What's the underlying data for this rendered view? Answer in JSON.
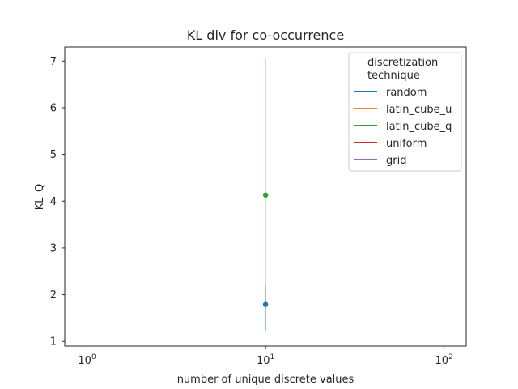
{
  "chart_data": {
    "type": "line",
    "title": "KL div for co-occurrence",
    "xlabel": "number of unique discrete values",
    "ylabel": "KL_Q",
    "xscale": "log",
    "xlim": [
      0.75,
      133
    ],
    "ylim": [
      0.9,
      7.3
    ],
    "xticks": [
      {
        "value": 1,
        "base": "10",
        "exp": "0"
      },
      {
        "value": 10,
        "base": "10",
        "exp": "1"
      },
      {
        "value": 100,
        "base": "10",
        "exp": "2"
      }
    ],
    "yticks": [
      1,
      2,
      3,
      4,
      5,
      6,
      7
    ],
    "grid": false,
    "legend": {
      "title_lines": [
        "discretization",
        "technique"
      ],
      "placement": "top-right"
    },
    "series": [
      {
        "name": "random",
        "color": "#1f77b4",
        "x": [
          10
        ],
        "y": [
          1.79
        ],
        "ci": [
          [
            1.25,
            2.2
          ]
        ]
      },
      {
        "name": "latin_cube_u",
        "color": "#ff7f0e",
        "x": [],
        "y": [],
        "ci": []
      },
      {
        "name": "latin_cube_q",
        "color": "#2ca02c",
        "x": [
          10
        ],
        "y": [
          4.13
        ],
        "ci": [
          [
            1.2,
            7.05
          ]
        ]
      },
      {
        "name": "uniform",
        "color": "#d62728",
        "x": [],
        "y": [],
        "ci": []
      },
      {
        "name": "grid",
        "color": "#9467bd",
        "x": [],
        "y": [],
        "ci": []
      }
    ]
  }
}
